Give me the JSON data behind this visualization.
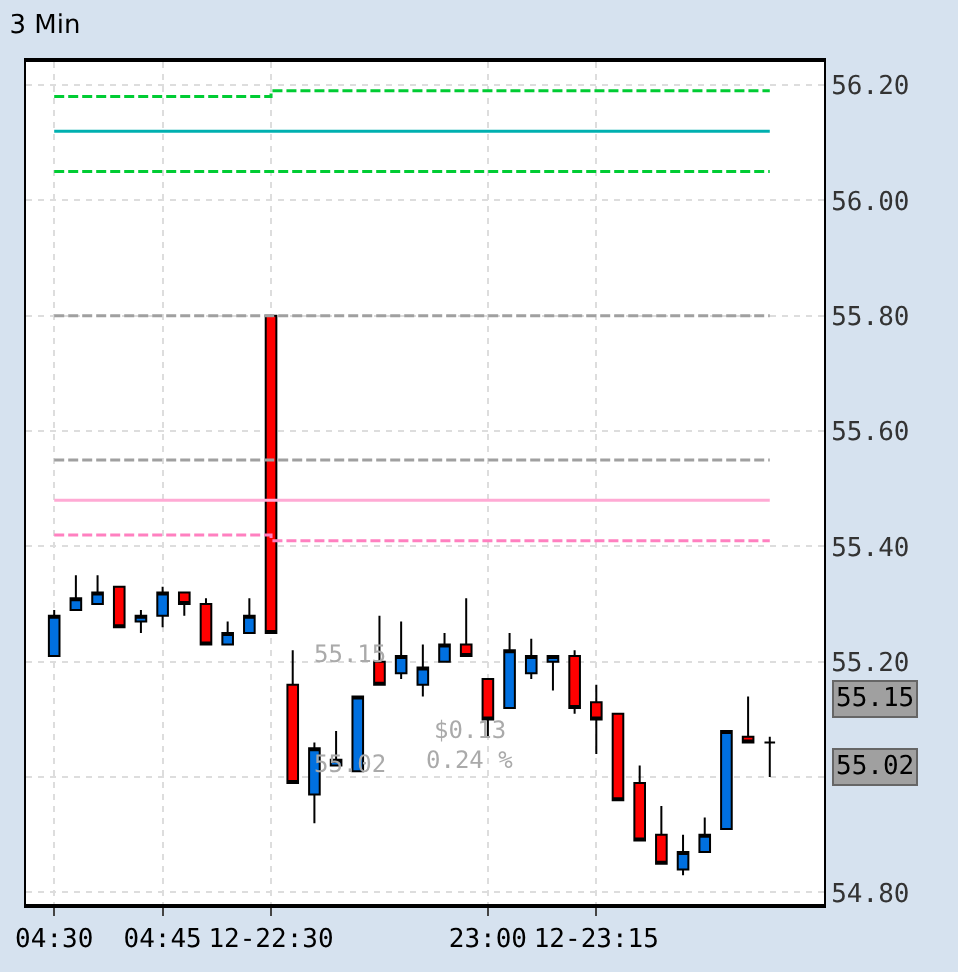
{
  "chart_data": {
    "type": "candlestick",
    "title": "3 Min",
    "categories": [
      "04:30",
      null,
      null,
      null,
      null,
      "04:45",
      null,
      null,
      null,
      null,
      "12-22:30",
      null,
      null,
      null,
      null,
      null,
      null,
      null,
      null,
      null,
      "23:00",
      null,
      null,
      null,
      null,
      "12-23:15",
      null,
      null,
      null,
      null,
      null,
      null,
      null,
      null
    ],
    "ohlc": [
      [
        55.21,
        55.29,
        55.21,
        55.28
      ],
      [
        55.29,
        55.35,
        55.29,
        55.31
      ],
      [
        55.3,
        55.35,
        55.3,
        55.32
      ],
      [
        55.33,
        55.33,
        55.26,
        55.26
      ],
      [
        55.27,
        55.29,
        55.25,
        55.28
      ],
      [
        55.28,
        55.33,
        55.26,
        55.32
      ],
      [
        55.32,
        55.32,
        55.28,
        55.3
      ],
      [
        55.3,
        55.31,
        55.23,
        55.23
      ],
      [
        55.23,
        55.27,
        55.23,
        55.25
      ],
      [
        55.25,
        55.31,
        55.25,
        55.28
      ],
      [
        55.8,
        55.8,
        55.25,
        55.25
      ],
      [
        55.16,
        55.22,
        54.99,
        54.99
      ],
      [
        54.97,
        55.06,
        54.92,
        55.05
      ],
      [
        55.02,
        55.08,
        55.02,
        55.03
      ],
      [
        55.01,
        55.14,
        55.01,
        55.14
      ],
      [
        55.2,
        55.28,
        55.16,
        55.16
      ],
      [
        55.18,
        55.27,
        55.17,
        55.21
      ],
      [
        55.16,
        55.23,
        55.14,
        55.19
      ],
      [
        55.2,
        55.25,
        55.2,
        55.23
      ],
      [
        55.23,
        55.31,
        55.21,
        55.21
      ],
      [
        55.17,
        55.17,
        55.07,
        55.1
      ],
      [
        55.12,
        55.25,
        55.12,
        55.22
      ],
      [
        55.18,
        55.24,
        55.17,
        55.21
      ],
      [
        55.2,
        55.21,
        55.15,
        55.21
      ],
      [
        55.21,
        55.22,
        55.11,
        55.12
      ],
      [
        55.13,
        55.16,
        55.04,
        55.1
      ],
      [
        55.11,
        55.11,
        54.96,
        54.96
      ],
      [
        54.99,
        55.02,
        54.89,
        54.89
      ],
      [
        54.9,
        54.95,
        54.85,
        54.85
      ],
      [
        54.84,
        54.9,
        54.83,
        54.87
      ],
      [
        54.87,
        54.93,
        54.87,
        54.9
      ],
      [
        54.91,
        55.08,
        54.91,
        55.08
      ],
      [
        55.07,
        55.14,
        55.06,
        55.06
      ],
      [
        55.06,
        55.07,
        55.0,
        55.06
      ]
    ],
    "colors": [
      "#0070e0",
      "#0070e0",
      "#0070e0",
      "#ff0000",
      "#0070e0",
      "#0070e0",
      "#ff0000",
      "#ff0000",
      "#0070e0",
      "#0070e0",
      "#ff0000",
      "#ff0000",
      "#0070e0",
      "#0070e0",
      "#0070e0",
      "#ff0000",
      "#0070e0",
      "#0070e0",
      "#0070e0",
      "#ff0000",
      "#ff0000",
      "#0070e0",
      "#0070e0",
      "#0070e0",
      "#ff0000",
      "#ff0000",
      "#ff0000",
      "#ff0000",
      "#ff0000",
      "#0070e0",
      "#0070e0",
      "#0070e0",
      "#ff0000",
      "#000000"
    ],
    "series": [
      {
        "type": "step",
        "color": "#00cc33",
        "line_style": "dashed",
        "values": [
          56.18,
          56.18,
          56.18,
          56.18,
          56.18,
          56.18,
          56.18,
          56.18,
          56.18,
          56.18,
          56.19,
          56.19,
          56.19,
          56.19,
          56.19,
          56.19,
          56.19,
          56.19,
          56.19,
          56.19,
          56.19,
          56.19,
          56.19,
          56.19,
          56.19,
          56.19,
          56.19,
          56.19,
          56.19,
          56.19,
          56.19,
          56.19,
          56.19,
          56.19
        ]
      },
      {
        "type": "step",
        "color": "#00b0b0",
        "line_style": "solid",
        "values": [
          56.12,
          56.12,
          56.12,
          56.12,
          56.12,
          56.12,
          56.12,
          56.12,
          56.12,
          56.12,
          56.12,
          56.12,
          56.12,
          56.12,
          56.12,
          56.12,
          56.12,
          56.12,
          56.12,
          56.12,
          56.12,
          56.12,
          56.12,
          56.12,
          56.12,
          56.12,
          56.12,
          56.12,
          56.12,
          56.12,
          56.12,
          56.12,
          56.12,
          56.12
        ]
      },
      {
        "type": "step",
        "color": "#00cc33",
        "line_style": "dashed",
        "values": [
          56.05,
          56.05,
          56.05,
          56.05,
          56.05,
          56.05,
          56.05,
          56.05,
          56.05,
          56.05,
          56.05,
          56.05,
          56.05,
          56.05,
          56.05,
          56.05,
          56.05,
          56.05,
          56.05,
          56.05,
          56.05,
          56.05,
          56.05,
          56.05,
          56.05,
          56.05,
          56.05,
          56.05,
          56.05,
          56.05,
          56.05,
          56.05,
          56.05,
          56.05
        ]
      },
      {
        "type": "step",
        "color": "#a0a0a0",
        "line_style": "dashed",
        "values": [
          55.8,
          55.8,
          55.8,
          55.8,
          55.8,
          55.8,
          55.8,
          55.8,
          55.8,
          55.8,
          55.8,
          55.8,
          55.8,
          55.8,
          55.8,
          55.8,
          55.8,
          55.8,
          55.8,
          55.8,
          55.8,
          55.8,
          55.8,
          55.8,
          55.8,
          55.8,
          55.8,
          55.8,
          55.8,
          55.8,
          55.8,
          55.8,
          55.8,
          55.8
        ]
      },
      {
        "type": "step",
        "color": "#a0a0a0",
        "line_style": "dashed",
        "values": [
          55.55,
          55.55,
          55.55,
          55.55,
          55.55,
          55.55,
          55.55,
          55.55,
          55.55,
          55.55,
          55.55,
          55.55,
          55.55,
          55.55,
          55.55,
          55.55,
          55.55,
          55.55,
          55.55,
          55.55,
          55.55,
          55.55,
          55.55,
          55.55,
          55.55,
          55.55,
          55.55,
          55.55,
          55.55,
          55.55,
          55.55,
          55.55,
          55.55,
          55.55
        ]
      },
      {
        "type": "step",
        "color": "#ffaad4",
        "line_style": "solid",
        "values": [
          55.48,
          55.48,
          55.48,
          55.48,
          55.48,
          55.48,
          55.48,
          55.48,
          55.48,
          55.48,
          55.48,
          55.48,
          55.48,
          55.48,
          55.48,
          55.48,
          55.48,
          55.48,
          55.48,
          55.48,
          55.48,
          55.48,
          55.48,
          55.48,
          55.48,
          55.48,
          55.48,
          55.48,
          55.48,
          55.48,
          55.48,
          55.48,
          55.48,
          55.48
        ]
      },
      {
        "type": "step",
        "color": "#ff80c0",
        "line_style": "dashed",
        "values": [
          55.42,
          55.42,
          55.42,
          55.42,
          55.42,
          55.42,
          55.42,
          55.42,
          55.42,
          55.42,
          55.41,
          55.41,
          55.41,
          55.41,
          55.41,
          55.41,
          55.41,
          55.41,
          55.41,
          55.41,
          55.41,
          55.41,
          55.41,
          55.41,
          55.41,
          55.41,
          55.41,
          55.41,
          55.41,
          55.41,
          55.41,
          55.41,
          55.41,
          55.41
        ]
      }
    ],
    "ylim": [
      54.78,
      56.24
    ],
    "yticks": [
      {
        "value": 54.8,
        "label": "54.80"
      },
      {
        "value": 55.0,
        "label": null
      },
      {
        "value": 55.2,
        "label": "55.20"
      },
      {
        "value": 55.4,
        "label": "55.40"
      },
      {
        "value": 55.6,
        "label": "55.60"
      },
      {
        "value": 55.8,
        "label": "55.80"
      },
      {
        "value": 56.0,
        "label": "56.00"
      },
      {
        "value": 56.2,
        "label": "56.20"
      }
    ],
    "grid": true,
    "annotations": [
      "55.15",
      "55.02",
      "$0.13",
      "0.24 %",
      "55.15",
      "55.02"
    ]
  }
}
